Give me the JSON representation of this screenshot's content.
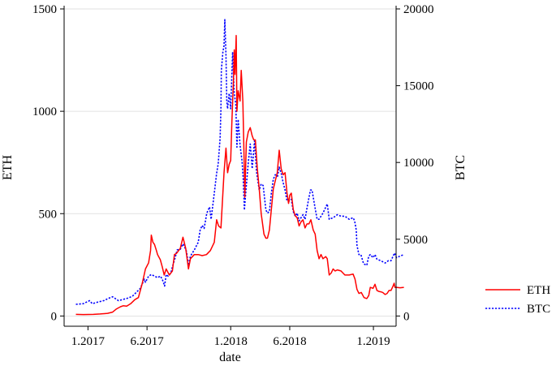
{
  "chart_data": {
    "type": "line",
    "xlabel": "date",
    "x_ticks": [
      {
        "label": "1.2017",
        "date": "2017-01-01"
      },
      {
        "label": "6.2017",
        "date": "2017-06-01"
      },
      {
        "label": "1.2018",
        "date": "2018-01-01"
      },
      {
        "label": "6.2018",
        "date": "2018-06-01"
      },
      {
        "label": "1.2019",
        "date": "2019-01-01"
      }
    ],
    "xlim": [
      "2016-11-01",
      "2019-02-28"
    ],
    "y_left": {
      "label": "ETH",
      "ticks": [
        "0",
        "500",
        "1000",
        "1500"
      ],
      "ylim": [
        -50,
        1500
      ]
    },
    "y_right": {
      "label": "BTC",
      "ticks": [
        "0",
        "5000",
        "10000",
        "15000",
        "20000"
      ],
      "ylim": [
        -667,
        20000
      ]
    },
    "grid": true,
    "legend_position": "bottom-right",
    "series": [
      {
        "name": "ETH",
        "axis": "left",
        "color": "#ff0000",
        "style": "solid",
        "points": [
          [
            "2016-12-01",
            8
          ],
          [
            "2016-12-20",
            7
          ],
          [
            "2017-01-15",
            8
          ],
          [
            "2017-02-01",
            10
          ],
          [
            "2017-02-20",
            13
          ],
          [
            "2017-03-05",
            19
          ],
          [
            "2017-03-15",
            35
          ],
          [
            "2017-03-25",
            45
          ],
          [
            "2017-04-01",
            50
          ],
          [
            "2017-04-10",
            48
          ],
          [
            "2017-04-20",
            60
          ],
          [
            "2017-05-01",
            80
          ],
          [
            "2017-05-10",
            90
          ],
          [
            "2017-05-20",
            160
          ],
          [
            "2017-05-28",
            230
          ],
          [
            "2017-06-05",
            260
          ],
          [
            "2017-06-10",
            320
          ],
          [
            "2017-06-12",
            395
          ],
          [
            "2017-06-16",
            360
          ],
          [
            "2017-06-20",
            350
          ],
          [
            "2017-06-25",
            320
          ],
          [
            "2017-06-28",
            300
          ],
          [
            "2017-07-05",
            275
          ],
          [
            "2017-07-10",
            240
          ],
          [
            "2017-07-15",
            200
          ],
          [
            "2017-07-20",
            230
          ],
          [
            "2017-07-28",
            200
          ],
          [
            "2017-08-05",
            220
          ],
          [
            "2017-08-10",
            300
          ],
          [
            "2017-08-15",
            305
          ],
          [
            "2017-08-25",
            330
          ],
          [
            "2017-09-01",
            385
          ],
          [
            "2017-09-08",
            330
          ],
          [
            "2017-09-15",
            230
          ],
          [
            "2017-09-20",
            280
          ],
          [
            "2017-09-30",
            300
          ],
          [
            "2017-10-10",
            300
          ],
          [
            "2017-10-20",
            295
          ],
          [
            "2017-10-31",
            300
          ],
          [
            "2017-11-10",
            320
          ],
          [
            "2017-11-20",
            360
          ],
          [
            "2017-11-26",
            470
          ],
          [
            "2017-12-01",
            440
          ],
          [
            "2017-12-07",
            430
          ],
          [
            "2017-12-12",
            600
          ],
          [
            "2017-12-15",
            700
          ],
          [
            "2017-12-20",
            820
          ],
          [
            "2017-12-24",
            700
          ],
          [
            "2017-12-28",
            740
          ],
          [
            "2018-01-01",
            760
          ],
          [
            "2018-01-04",
            950
          ],
          [
            "2018-01-08",
            1150
          ],
          [
            "2018-01-10",
            1300
          ],
          [
            "2018-01-12",
            1180
          ],
          [
            "2018-01-15",
            1370
          ],
          [
            "2018-01-17",
            1000
          ],
          [
            "2018-01-20",
            1100
          ],
          [
            "2018-01-25",
            1050
          ],
          [
            "2018-01-28",
            1200
          ],
          [
            "2018-02-01",
            1050
          ],
          [
            "2018-02-05",
            700
          ],
          [
            "2018-02-06",
            580
          ],
          [
            "2018-02-10",
            850
          ],
          [
            "2018-02-15",
            900
          ],
          [
            "2018-02-20",
            920
          ],
          [
            "2018-02-25",
            880
          ],
          [
            "2018-03-01",
            860
          ],
          [
            "2018-03-05",
            860
          ],
          [
            "2018-03-10",
            720
          ],
          [
            "2018-03-15",
            620
          ],
          [
            "2018-03-20",
            500
          ],
          [
            "2018-03-27",
            400
          ],
          [
            "2018-04-01",
            380
          ],
          [
            "2018-04-05",
            380
          ],
          [
            "2018-04-10",
            420
          ],
          [
            "2018-04-15",
            520
          ],
          [
            "2018-04-20",
            620
          ],
          [
            "2018-04-25",
            660
          ],
          [
            "2018-04-30",
            700
          ],
          [
            "2018-05-05",
            810
          ],
          [
            "2018-05-10",
            720
          ],
          [
            "2018-05-15",
            690
          ],
          [
            "2018-05-20",
            700
          ],
          [
            "2018-05-25",
            600
          ],
          [
            "2018-05-29",
            550
          ],
          [
            "2018-06-01",
            590
          ],
          [
            "2018-06-05",
            600
          ],
          [
            "2018-06-10",
            520
          ],
          [
            "2018-06-15",
            490
          ],
          [
            "2018-06-20",
            480
          ],
          [
            "2018-06-25",
            440
          ],
          [
            "2018-06-30",
            460
          ],
          [
            "2018-07-05",
            470
          ],
          [
            "2018-07-10",
            430
          ],
          [
            "2018-07-15",
            450
          ],
          [
            "2018-07-20",
            450
          ],
          [
            "2018-07-25",
            470
          ],
          [
            "2018-07-31",
            420
          ],
          [
            "2018-08-05",
            400
          ],
          [
            "2018-08-10",
            320
          ],
          [
            "2018-08-15",
            280
          ],
          [
            "2018-08-20",
            300
          ],
          [
            "2018-08-25",
            280
          ],
          [
            "2018-09-01",
            290
          ],
          [
            "2018-09-05",
            280
          ],
          [
            "2018-09-10",
            200
          ],
          [
            "2018-09-15",
            210
          ],
          [
            "2018-09-20",
            230
          ],
          [
            "2018-09-25",
            220
          ],
          [
            "2018-10-01",
            225
          ],
          [
            "2018-10-10",
            220
          ],
          [
            "2018-10-20",
            200
          ],
          [
            "2018-10-31",
            200
          ],
          [
            "2018-11-10",
            205
          ],
          [
            "2018-11-15",
            180
          ],
          [
            "2018-11-20",
            130
          ],
          [
            "2018-11-25",
            110
          ],
          [
            "2018-12-01",
            115
          ],
          [
            "2018-12-08",
            90
          ],
          [
            "2018-12-15",
            85
          ],
          [
            "2018-12-20",
            100
          ],
          [
            "2018-12-24",
            140
          ],
          [
            "2018-12-31",
            135
          ],
          [
            "2019-01-05",
            155
          ],
          [
            "2019-01-10",
            125
          ],
          [
            "2019-01-15",
            120
          ],
          [
            "2019-01-20",
            118
          ],
          [
            "2019-01-25",
            115
          ],
          [
            "2019-01-31",
            105
          ],
          [
            "2019-02-05",
            110
          ],
          [
            "2019-02-10",
            125
          ],
          [
            "2019-02-15",
            125
          ],
          [
            "2019-02-20",
            145
          ],
          [
            "2019-02-23",
            160
          ],
          [
            "2019-02-25",
            140
          ],
          [
            "2019-03-01",
            140
          ],
          [
            "2019-03-10",
            138
          ],
          [
            "2019-03-20",
            140
          ]
        ]
      },
      {
        "name": "BTC",
        "axis": "right",
        "color": "#0000ff",
        "style": "dotted",
        "points": [
          [
            "2016-12-01",
            760
          ],
          [
            "2016-12-20",
            800
          ],
          [
            "2017-01-05",
            1000
          ],
          [
            "2017-01-12",
            800
          ],
          [
            "2017-01-25",
            900
          ],
          [
            "2017-02-10",
            1000
          ],
          [
            "2017-02-25",
            1180
          ],
          [
            "2017-03-05",
            1250
          ],
          [
            "2017-03-20",
            1000
          ],
          [
            "2017-04-01",
            1080
          ],
          [
            "2017-04-15",
            1180
          ],
          [
            "2017-04-25",
            1300
          ],
          [
            "2017-05-05",
            1550
          ],
          [
            "2017-05-15",
            1800
          ],
          [
            "2017-05-25",
            2400
          ],
          [
            "2017-05-28",
            2200
          ],
          [
            "2017-06-05",
            2600
          ],
          [
            "2017-06-12",
            2700
          ],
          [
            "2017-06-20",
            2600
          ],
          [
            "2017-06-28",
            2500
          ],
          [
            "2017-07-05",
            2600
          ],
          [
            "2017-07-10",
            2400
          ],
          [
            "2017-07-16",
            1950
          ],
          [
            "2017-07-20",
            2700
          ],
          [
            "2017-07-25",
            2600
          ],
          [
            "2017-08-01",
            2800
          ],
          [
            "2017-08-05",
            3200
          ],
          [
            "2017-08-12",
            3800
          ],
          [
            "2017-08-17",
            4300
          ],
          [
            "2017-08-25",
            4350
          ],
          [
            "2017-09-01",
            4700
          ],
          [
            "2017-09-05",
            4500
          ],
          [
            "2017-09-10",
            4200
          ],
          [
            "2017-09-15",
            3300
          ],
          [
            "2017-09-20",
            3900
          ],
          [
            "2017-09-30",
            4300
          ],
          [
            "2017-10-10",
            4800
          ],
          [
            "2017-10-15",
            5600
          ],
          [
            "2017-10-20",
            5900
          ],
          [
            "2017-10-25",
            5700
          ],
          [
            "2017-11-01",
            6700
          ],
          [
            "2017-11-08",
            7100
          ],
          [
            "2017-11-12",
            6300
          ],
          [
            "2017-11-20",
            8000
          ],
          [
            "2017-11-26",
            9300
          ],
          [
            "2017-11-30",
            9900
          ],
          [
            "2017-12-05",
            11600
          ],
          [
            "2017-12-07",
            13500
          ],
          [
            "2017-12-08",
            16000
          ],
          [
            "2017-12-12",
            17200
          ],
          [
            "2017-12-15",
            17600
          ],
          [
            "2017-12-17",
            19300
          ],
          [
            "2017-12-20",
            17000
          ],
          [
            "2017-12-22",
            14000
          ],
          [
            "2017-12-24",
            13500
          ],
          [
            "2017-12-28",
            14500
          ],
          [
            "2018-01-01",
            13500
          ],
          [
            "2018-01-06",
            17200
          ],
          [
            "2018-01-10",
            14500
          ],
          [
            "2018-01-14",
            13800
          ],
          [
            "2018-01-17",
            11000
          ],
          [
            "2018-01-20",
            12800
          ],
          [
            "2018-01-25",
            11100
          ],
          [
            "2018-01-30",
            10100
          ],
          [
            "2018-02-02",
            9000
          ],
          [
            "2018-02-05",
            6900
          ],
          [
            "2018-02-09",
            8200
          ],
          [
            "2018-02-15",
            10000
          ],
          [
            "2018-02-20",
            11200
          ],
          [
            "2018-02-25",
            9600
          ],
          [
            "2018-03-03",
            11400
          ],
          [
            "2018-03-08",
            9400
          ],
          [
            "2018-03-15",
            8200
          ],
          [
            "2018-03-20",
            8600
          ],
          [
            "2018-03-25",
            8500
          ],
          [
            "2018-04-01",
            6900
          ],
          [
            "2018-04-05",
            6700
          ],
          [
            "2018-04-10",
            6800
          ],
          [
            "2018-04-15",
            8000
          ],
          [
            "2018-04-20",
            8900
          ],
          [
            "2018-04-25",
            9200
          ],
          [
            "2018-05-01",
            9100
          ],
          [
            "2018-05-05",
            9700
          ],
          [
            "2018-05-10",
            9300
          ],
          [
            "2018-05-15",
            8700
          ],
          [
            "2018-05-20",
            8200
          ],
          [
            "2018-05-25",
            7500
          ],
          [
            "2018-06-01",
            7500
          ],
          [
            "2018-06-05",
            7600
          ],
          [
            "2018-06-10",
            6800
          ],
          [
            "2018-06-15",
            6500
          ],
          [
            "2018-06-20",
            6700
          ],
          [
            "2018-06-25",
            6200
          ],
          [
            "2018-06-30",
            6400
          ],
          [
            "2018-07-05",
            6600
          ],
          [
            "2018-07-10",
            6300
          ],
          [
            "2018-07-17",
            7300
          ],
          [
            "2018-07-24",
            8200
          ],
          [
            "2018-07-28",
            8200
          ],
          [
            "2018-08-05",
            7000
          ],
          [
            "2018-08-10",
            6300
          ],
          [
            "2018-08-15",
            6300
          ],
          [
            "2018-08-25",
            6700
          ],
          [
            "2018-09-05",
            7300
          ],
          [
            "2018-09-10",
            6300
          ],
          [
            "2018-09-20",
            6400
          ],
          [
            "2018-10-01",
            6600
          ],
          [
            "2018-10-10",
            6500
          ],
          [
            "2018-10-20",
            6500
          ],
          [
            "2018-10-31",
            6300
          ],
          [
            "2018-11-10",
            6400
          ],
          [
            "2018-11-14",
            6200
          ],
          [
            "2018-11-18",
            5600
          ],
          [
            "2018-11-20",
            4600
          ],
          [
            "2018-11-25",
            4000
          ],
          [
            "2018-11-30",
            4000
          ],
          [
            "2018-12-07",
            3400
          ],
          [
            "2018-12-15",
            3300
          ],
          [
            "2018-12-20",
            3900
          ],
          [
            "2018-12-24",
            4000
          ],
          [
            "2018-12-31",
            3800
          ],
          [
            "2019-01-05",
            4000
          ],
          [
            "2019-01-10",
            3700
          ],
          [
            "2019-01-20",
            3600
          ],
          [
            "2019-01-31",
            3450
          ],
          [
            "2019-02-08",
            3600
          ],
          [
            "2019-02-15",
            3600
          ],
          [
            "2019-02-24",
            4100
          ],
          [
            "2019-03-01",
            3800
          ],
          [
            "2019-03-10",
            3900
          ],
          [
            "2019-03-20",
            4000
          ]
        ]
      }
    ]
  }
}
